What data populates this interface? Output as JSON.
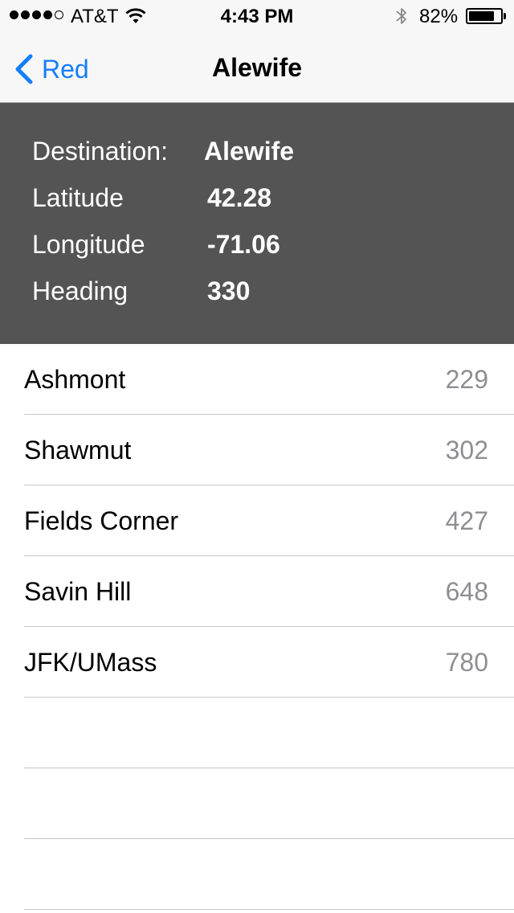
{
  "status_bar": {
    "carrier": "AT&T",
    "time": "4:43 PM",
    "battery_percent": "82%",
    "battery_level": 0.82,
    "signal_bars_filled": 4,
    "signal_bars_total": 5
  },
  "nav": {
    "back_label": "Red",
    "title": "Alewife",
    "accent_color": "#157efb"
  },
  "info": {
    "rows": [
      {
        "label": "Destination:",
        "value": "Alewife"
      },
      {
        "label": "Latitude",
        "value": "42.28"
      },
      {
        "label": "Longitude",
        "value": "-71.06"
      },
      {
        "label": "Heading",
        "value": "330"
      }
    ],
    "background_color": "#545454"
  },
  "stations": [
    {
      "name": "Ashmont",
      "value": "229"
    },
    {
      "name": "Shawmut",
      "value": "302"
    },
    {
      "name": "Fields Corner",
      "value": "427"
    },
    {
      "name": "Savin Hill",
      "value": "648"
    },
    {
      "name": "JFK/UMass",
      "value": "780"
    }
  ],
  "empty_rows": 3
}
